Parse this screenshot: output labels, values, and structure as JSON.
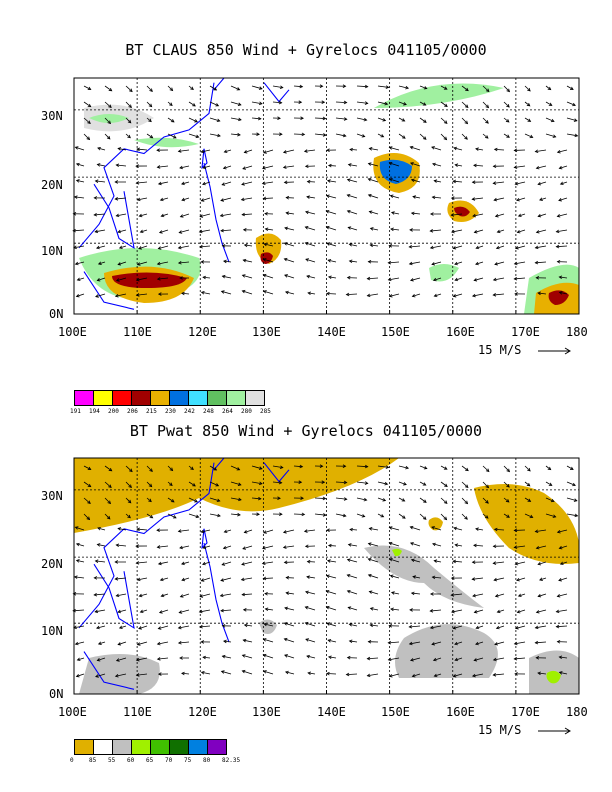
{
  "panels": [
    {
      "title": "BT CLAUS 850 Wind + Gyrelocs 041105/0000",
      "field": "brightness-temperature",
      "x_ticks": [
        "100E",
        "110E",
        "120E",
        "130E",
        "140E",
        "150E",
        "160E",
        "170E",
        "180"
      ],
      "y_ticks": [
        "0N",
        "10N",
        "20N",
        "30N"
      ],
      "scale_label": "15 M/S",
      "legend": {
        "labels": [
          "191",
          "194",
          "200",
          "206",
          "215",
          "230",
          "242",
          "248",
          "264",
          "280",
          "285"
        ],
        "colors": [
          "#ff00ff",
          "#ffff00",
          "#ff0000",
          "#a00000",
          "#e8b000",
          "#0070e0",
          "#40e0ff",
          "#60c060",
          "#a0f0a0",
          "#e0e0e0"
        ]
      }
    },
    {
      "title": "BT Pwat 850 Wind + Gyrelocs 041105/0000",
      "field": "precipitable-water",
      "x_ticks": [
        "100E",
        "110E",
        "120E",
        "130E",
        "140E",
        "150E",
        "160E",
        "170E",
        "180"
      ],
      "y_ticks": [
        "0N",
        "10N",
        "20N",
        "30N"
      ],
      "scale_label": "15 M/S",
      "legend": {
        "labels": [
          "0",
          "85",
          "55",
          "60",
          "65",
          "70",
          "75",
          "80",
          "82.35"
        ],
        "colors": [
          "#e0b000",
          "#ffffff",
          "#c0c0c0",
          "#a0f000",
          "#40c000",
          "#107000",
          "#0080e0",
          "#8000c0"
        ]
      }
    }
  ],
  "colors": {
    "coastline": "#0000ff",
    "grid": "#000000",
    "arrow": "#000000"
  }
}
